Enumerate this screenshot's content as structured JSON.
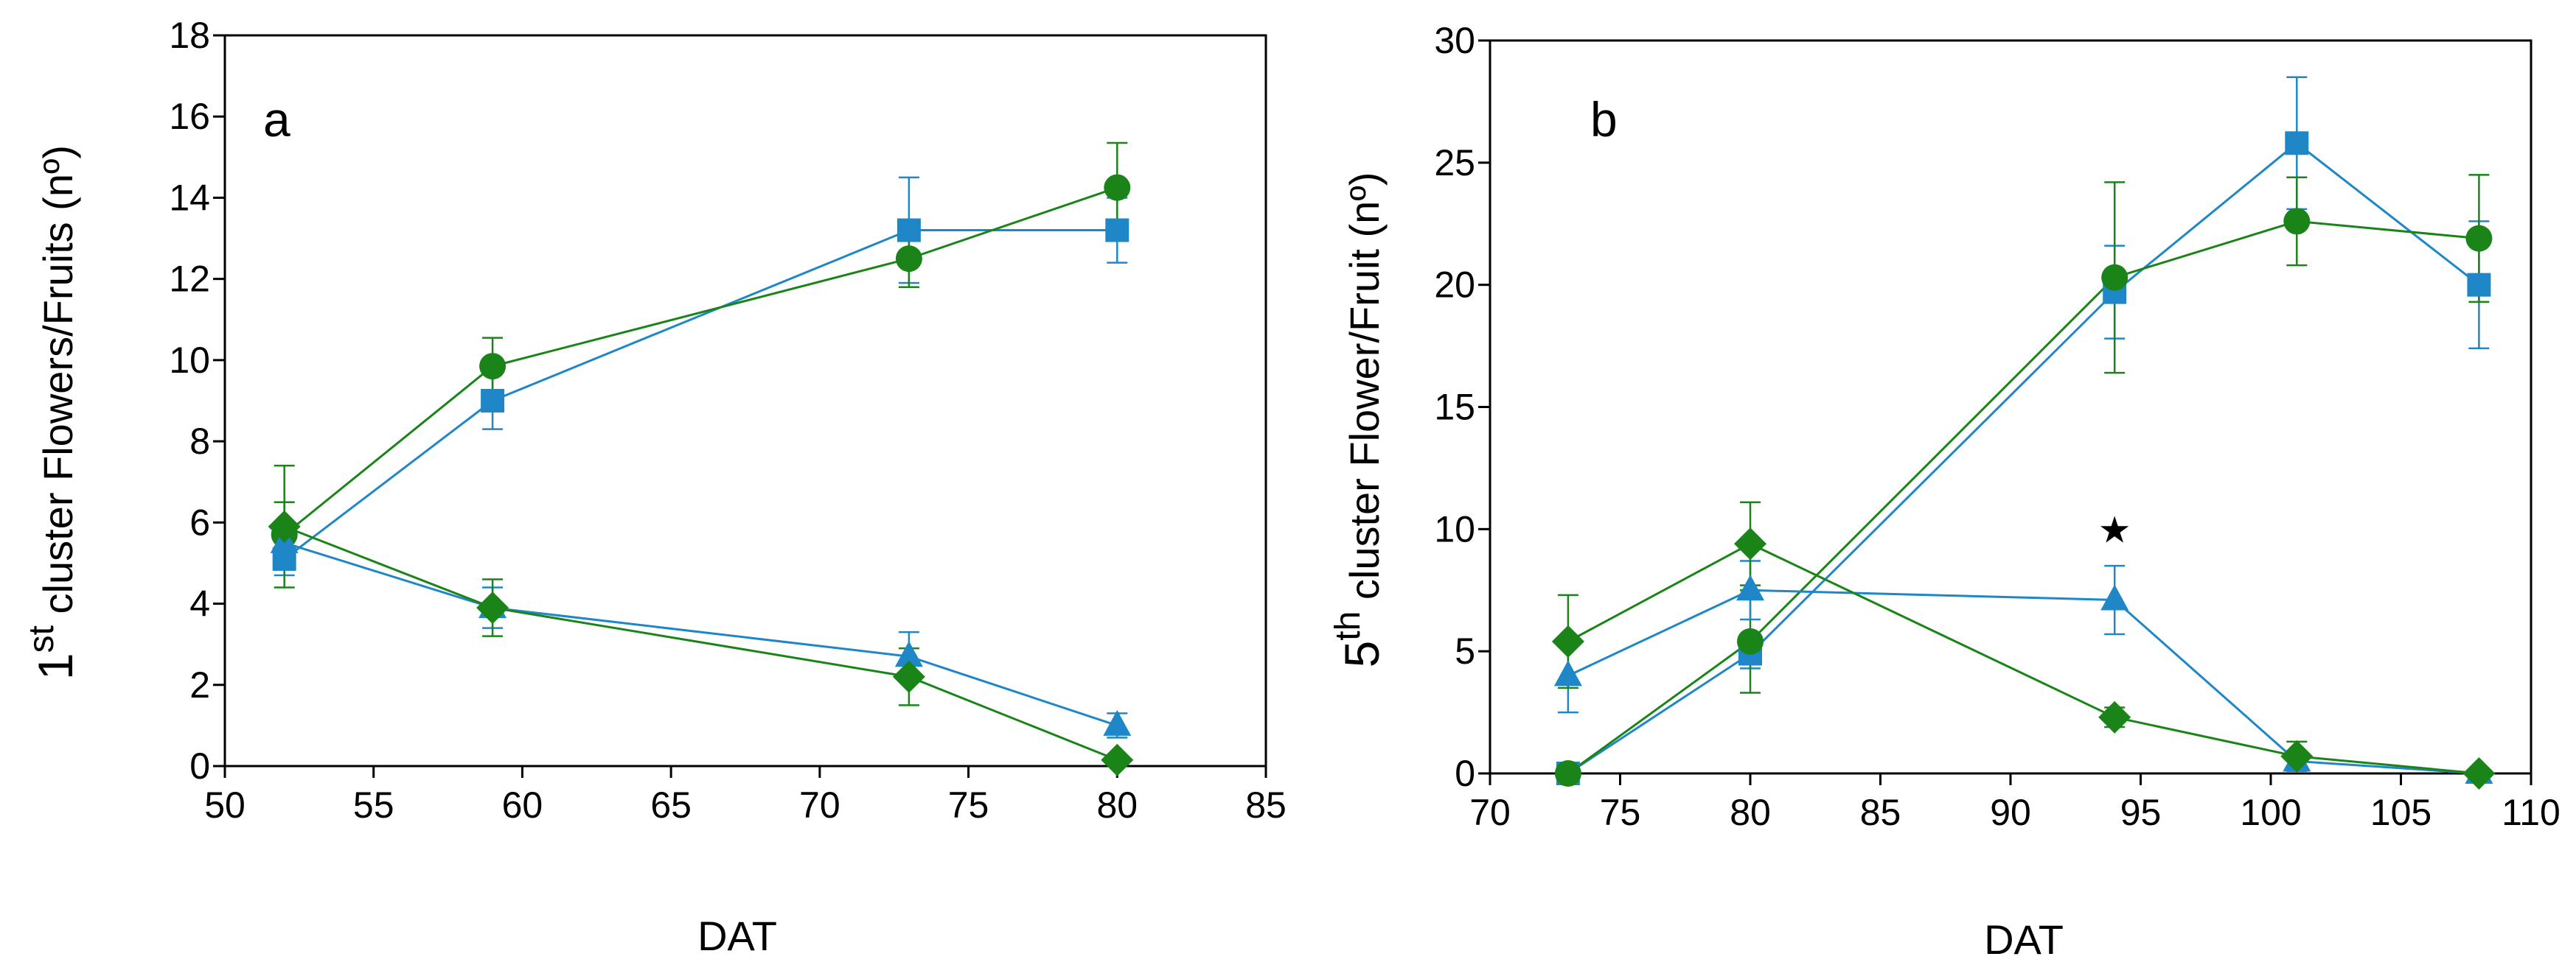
{
  "colors": {
    "blue": "#1f87c8",
    "green": "#1a8419",
    "axis": "#000000",
    "star": "#000000"
  },
  "chart_data": [
    {
      "type": "line",
      "panel_label": "a",
      "xlabel": "DAT",
      "ylabel": {
        "main": "1",
        "sup": "st",
        "rest": " cluster Flowers/Fruits (nº)"
      },
      "xlim": [
        50,
        85
      ],
      "ylim": [
        0,
        18
      ],
      "xticks": [
        "50",
        "55",
        "60",
        "65",
        "70",
        "75",
        "80",
        "85"
      ],
      "yticks": [
        "0",
        "2",
        "4",
        "6",
        "8",
        "10",
        "12",
        "14",
        "16",
        "18"
      ],
      "series": [
        {
          "name": "flowers-blue-square",
          "marker": "square",
          "color": "blue",
          "x": [
            52,
            59,
            73,
            80
          ],
          "y": [
            5.1,
            9.0,
            13.2,
            13.2
          ],
          "err": [
            0.4,
            0.7,
            1.3,
            0.8
          ]
        },
        {
          "name": "flowers-green-circle",
          "marker": "circle",
          "color": "green",
          "x": [
            52,
            59,
            73,
            80
          ],
          "y": [
            5.7,
            9.85,
            12.5,
            14.25
          ],
          "err": [
            0.8,
            0.7,
            0.7,
            1.1
          ]
        },
        {
          "name": "fruits-blue-triangle",
          "marker": "triangle",
          "color": "blue",
          "x": [
            52,
            59,
            73,
            80
          ],
          "y": [
            5.5,
            3.9,
            2.7,
            1.0
          ],
          "err": [
            0.5,
            0.5,
            0.6,
            0.3
          ]
        },
        {
          "name": "fruits-green-diamond",
          "marker": "diamond",
          "color": "green",
          "x": [
            52,
            59,
            73,
            80
          ],
          "y": [
            5.9,
            3.9,
            2.2,
            0.15
          ],
          "err": [
            1.5,
            0.7,
            0.7,
            0.1
          ]
        }
      ],
      "annotations": []
    },
    {
      "type": "line",
      "panel_label": "b",
      "xlabel": "DAT",
      "ylabel": {
        "main": "5",
        "sup": "th",
        "rest": " cluster Flower/Fruit (nº)"
      },
      "xlim": [
        70,
        110
      ],
      "ylim": [
        0,
        30
      ],
      "xticks": [
        "70",
        "75",
        "80",
        "85",
        "90",
        "95",
        "100",
        "105",
        "110"
      ],
      "yticks": [
        "0",
        "5",
        "10",
        "15",
        "20",
        "25",
        "30"
      ],
      "series": [
        {
          "name": "flowers-blue-square",
          "marker": "square",
          "color": "blue",
          "x": [
            73,
            80,
            94,
            101,
            108
          ],
          "y": [
            0,
            4.9,
            19.7,
            25.8,
            20.0
          ],
          "err": [
            0,
            0.6,
            1.9,
            2.7,
            2.6
          ]
        },
        {
          "name": "flowers-green-circle",
          "marker": "circle",
          "color": "green",
          "x": [
            73,
            80,
            94,
            101,
            108
          ],
          "y": [
            0,
            5.4,
            20.3,
            22.6,
            21.9
          ],
          "err": [
            0,
            2.1,
            3.9,
            1.8,
            2.6
          ]
        },
        {
          "name": "fruits-blue-triangle",
          "marker": "triangle",
          "color": "blue",
          "x": [
            73,
            80,
            94,
            101,
            108
          ],
          "y": [
            4.0,
            7.5,
            7.1,
            0.5,
            0
          ],
          "err": [
            1.5,
            1.2,
            1.4,
            0.3,
            0
          ]
        },
        {
          "name": "fruits-green-diamond",
          "marker": "diamond",
          "color": "green",
          "x": [
            73,
            80,
            94,
            101,
            108
          ],
          "y": [
            5.4,
            9.4,
            2.3,
            0.7,
            0
          ],
          "err": [
            1.9,
            1.7,
            0.4,
            0.6,
            0
          ]
        }
      ],
      "annotations": [
        {
          "text": "★",
          "x": 94,
          "y": 10.0,
          "meaning": "significant difference marker"
        }
      ]
    }
  ]
}
